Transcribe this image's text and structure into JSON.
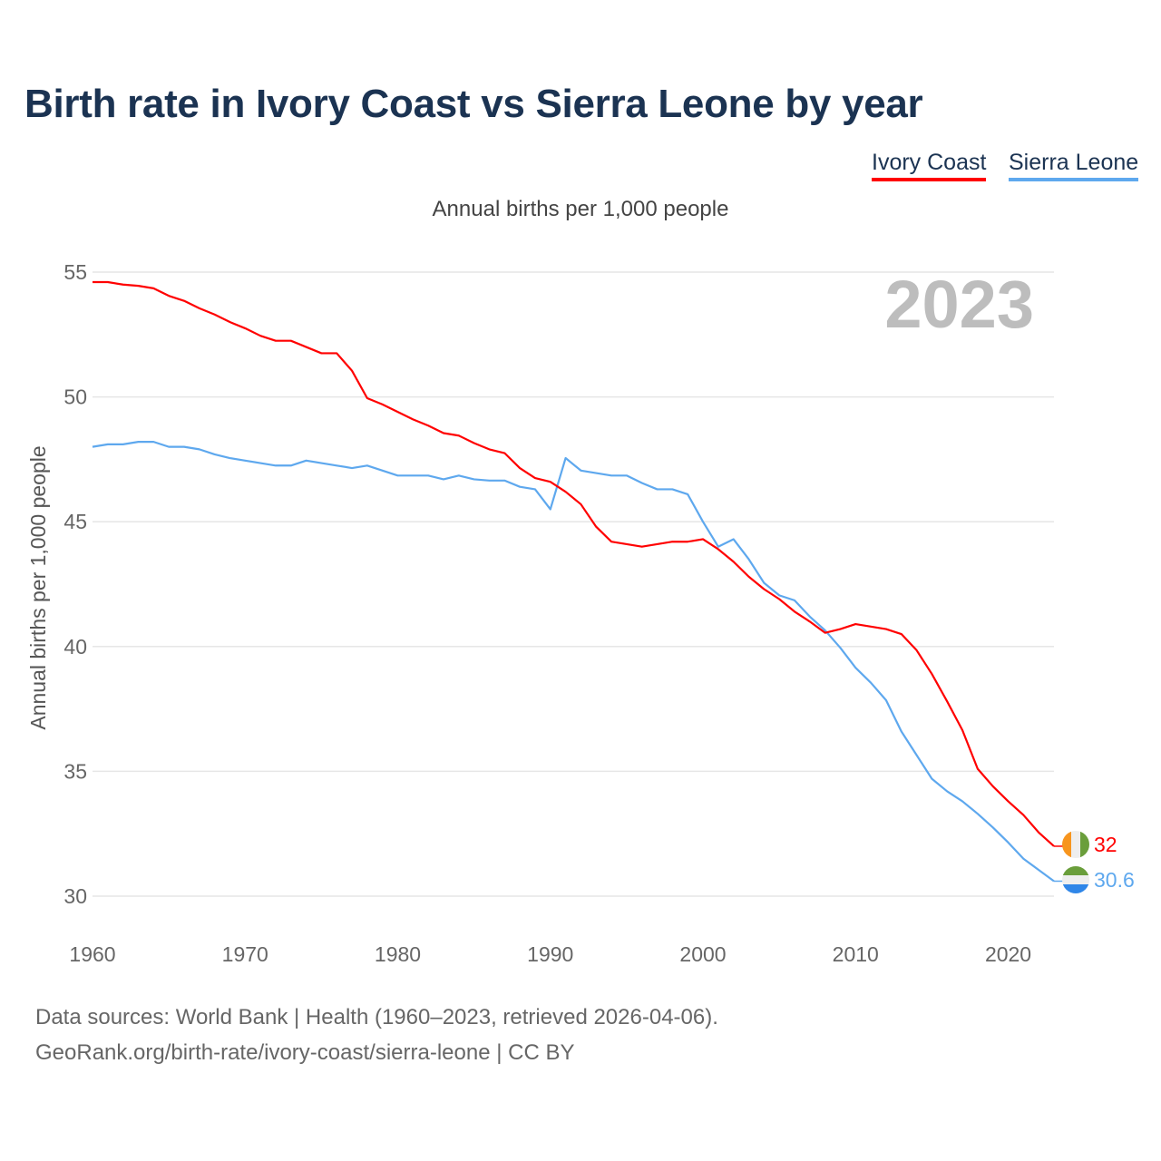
{
  "title": "Birth rate in Ivory Coast vs Sierra Leone by year",
  "subtitle": "Annual births per 1,000 people",
  "year_watermark": "2023",
  "footer": {
    "line1": "Data sources: World Bank | Health (1960–2023, retrieved 2026-04-06).",
    "line2": "GeoRank.org/birth-rate/ivory-coast/sierra-leone | CC BY"
  },
  "chart_data": {
    "type": "line",
    "title": "Birth rate in Ivory Coast vs Sierra Leone by year",
    "xlabel": "",
    "ylabel": "Annual births per 1,000 people",
    "xlim": [
      1960,
      2023
    ],
    "ylim": [
      30,
      55
    ],
    "xticks": [
      "1960",
      "1970",
      "1980",
      "1990",
      "2000",
      "2010",
      "2020"
    ],
    "yticks": [
      "30",
      "35",
      "40",
      "45",
      "50",
      "55"
    ],
    "grid": true,
    "legend_placement": "top-right",
    "x": [
      1960,
      1961,
      1962,
      1963,
      1964,
      1965,
      1966,
      1967,
      1968,
      1969,
      1970,
      1971,
      1972,
      1973,
      1974,
      1975,
      1976,
      1977,
      1978,
      1979,
      1980,
      1981,
      1982,
      1983,
      1984,
      1985,
      1986,
      1987,
      1988,
      1989,
      1990,
      1991,
      1992,
      1993,
      1994,
      1995,
      1996,
      1997,
      1998,
      1999,
      2000,
      2001,
      2002,
      2003,
      2004,
      2005,
      2006,
      2007,
      2008,
      2009,
      2010,
      2011,
      2012,
      2013,
      2014,
      2015,
      2016,
      2017,
      2018,
      2019,
      2020,
      2021,
      2022,
      2023
    ],
    "series": [
      {
        "name": "Ivory Coast",
        "color": "#ff0000",
        "end_label": "32",
        "values": [
          54.6,
          54.6,
          54.5,
          54.45,
          54.35,
          54.05,
          53.85,
          53.55,
          53.3,
          53.0,
          52.75,
          52.45,
          52.25,
          52.25,
          52.0,
          51.75,
          51.75,
          51.05,
          49.95,
          49.7,
          49.4,
          49.1,
          48.85,
          48.55,
          48.45,
          48.15,
          47.9,
          47.75,
          47.15,
          46.75,
          46.6,
          46.2,
          45.7,
          44.8,
          44.2,
          44.1,
          44.0,
          44.1,
          44.2,
          44.2,
          44.3,
          43.9,
          43.4,
          42.8,
          42.3,
          41.9,
          41.4,
          41.0,
          40.55,
          40.7,
          40.9,
          40.8,
          40.7,
          40.5,
          39.85,
          38.9,
          37.8,
          36.65,
          35.1,
          34.4,
          33.8,
          33.25,
          32.55,
          32.0
        ]
      },
      {
        "name": "Sierra Leone",
        "color": "#5ea8ee",
        "end_label": "30.6",
        "values": [
          48.0,
          48.1,
          48.1,
          48.2,
          48.2,
          48.0,
          48.0,
          47.9,
          47.7,
          47.55,
          47.45,
          47.35,
          47.25,
          47.25,
          47.45,
          47.35,
          47.25,
          47.15,
          47.25,
          47.05,
          46.85,
          46.85,
          46.85,
          46.7,
          46.85,
          46.7,
          46.65,
          46.65,
          46.4,
          46.3,
          45.5,
          47.55,
          47.05,
          46.95,
          46.85,
          46.85,
          46.55,
          46.3,
          46.3,
          46.1,
          45.0,
          44.0,
          44.3,
          43.5,
          42.55,
          42.05,
          41.85,
          41.2,
          40.65,
          39.95,
          39.15,
          38.55,
          37.85,
          36.6,
          35.65,
          34.7,
          34.2,
          33.8,
          33.3,
          32.75,
          32.15,
          31.5,
          31.05,
          30.6
        ]
      }
    ]
  }
}
